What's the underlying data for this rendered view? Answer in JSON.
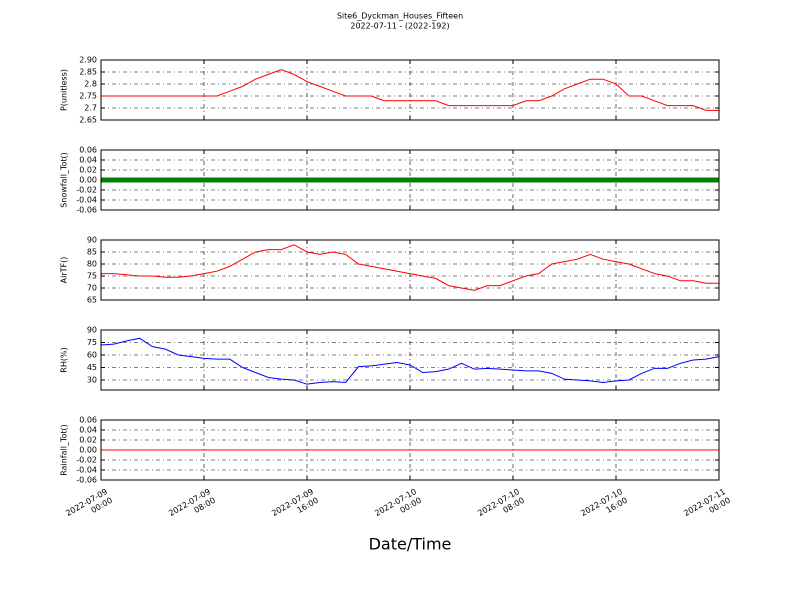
{
  "chart_data": [
    {
      "type": "line",
      "title": "Site6_Dyckman_Houses_Fifteen",
      "subtitle": "2022-07-11 - (2022-192)",
      "ylabel": "P(unitless)",
      "color": "#ff0000",
      "linewidth": 1,
      "grid": true,
      "x": [
        "2022-07-09 00:00",
        "2022-07-09 01:00",
        "2022-07-09 02:00",
        "2022-07-09 03:00",
        "2022-07-09 04:00",
        "2022-07-09 05:00",
        "2022-07-09 06:00",
        "2022-07-09 07:00",
        "2022-07-09 08:00",
        "2022-07-09 09:00",
        "2022-07-09 10:00",
        "2022-07-09 11:00",
        "2022-07-09 12:00",
        "2022-07-09 13:00",
        "2022-07-09 14:00",
        "2022-07-09 15:00",
        "2022-07-09 16:00",
        "2022-07-09 17:00",
        "2022-07-09 18:00",
        "2022-07-09 19:00",
        "2022-07-09 20:00",
        "2022-07-09 21:00",
        "2022-07-09 22:00",
        "2022-07-09 23:00",
        "2022-07-10 00:00",
        "2022-07-10 01:00",
        "2022-07-10 02:00",
        "2022-07-10 03:00",
        "2022-07-10 04:00",
        "2022-07-10 05:00",
        "2022-07-10 06:00",
        "2022-07-10 07:00",
        "2022-07-10 08:00",
        "2022-07-10 09:00",
        "2022-07-10 10:00",
        "2022-07-10 11:00",
        "2022-07-10 12:00",
        "2022-07-10 13:00",
        "2022-07-10 14:00",
        "2022-07-10 15:00",
        "2022-07-10 16:00",
        "2022-07-10 17:00",
        "2022-07-10 18:00",
        "2022-07-10 19:00",
        "2022-07-10 20:00",
        "2022-07-10 21:00",
        "2022-07-10 22:00",
        "2022-07-10 23:00",
        "2022-07-11 00:00"
      ],
      "values": [
        2.75,
        2.75,
        2.75,
        2.75,
        2.75,
        2.75,
        2.75,
        2.75,
        2.75,
        2.75,
        2.77,
        2.79,
        2.82,
        2.84,
        2.86,
        2.84,
        2.81,
        2.79,
        2.77,
        2.75,
        2.75,
        2.75,
        2.73,
        2.73,
        2.73,
        2.73,
        2.73,
        2.71,
        2.71,
        2.71,
        2.71,
        2.71,
        2.71,
        2.73,
        2.73,
        2.75,
        2.78,
        2.8,
        2.82,
        2.82,
        2.8,
        2.75,
        2.75,
        2.73,
        2.71,
        2.71,
        2.71,
        2.69,
        2.69
      ],
      "ylim": [
        2.65,
        2.9
      ],
      "yticks": [
        2.65,
        2.7,
        2.75,
        2.8,
        2.85,
        {
          "value": 2.9,
          "label": "2.90"
        }
      ]
    },
    {
      "type": "line",
      "ylabel": "Snowfall_Tot()",
      "color": "#008000",
      "linewidth": 5,
      "grid": true,
      "x": [
        "2022-07-09 00:00",
        "2022-07-09 01:00",
        "2022-07-09 02:00",
        "2022-07-09 03:00",
        "2022-07-09 04:00",
        "2022-07-09 05:00",
        "2022-07-09 06:00",
        "2022-07-09 07:00",
        "2022-07-09 08:00",
        "2022-07-09 09:00",
        "2022-07-09 10:00",
        "2022-07-09 11:00",
        "2022-07-09 12:00",
        "2022-07-09 13:00",
        "2022-07-09 14:00",
        "2022-07-09 15:00",
        "2022-07-09 16:00",
        "2022-07-09 17:00",
        "2022-07-09 18:00",
        "2022-07-09 19:00",
        "2022-07-09 20:00",
        "2022-07-09 21:00",
        "2022-07-09 22:00",
        "2022-07-09 23:00",
        "2022-07-10 00:00",
        "2022-07-10 01:00",
        "2022-07-10 02:00",
        "2022-07-10 03:00",
        "2022-07-10 04:00",
        "2022-07-10 05:00",
        "2022-07-10 06:00",
        "2022-07-10 07:00",
        "2022-07-10 08:00",
        "2022-07-10 09:00",
        "2022-07-10 10:00",
        "2022-07-10 11:00",
        "2022-07-10 12:00",
        "2022-07-10 13:00",
        "2022-07-10 14:00",
        "2022-07-10 15:00",
        "2022-07-10 16:00",
        "2022-07-10 17:00",
        "2022-07-10 18:00",
        "2022-07-10 19:00",
        "2022-07-10 20:00",
        "2022-07-10 21:00",
        "2022-07-10 22:00",
        "2022-07-10 23:00",
        "2022-07-11 00:00"
      ],
      "values": [
        0,
        0,
        0,
        0,
        0,
        0,
        0,
        0,
        0,
        0,
        0,
        0,
        0,
        0,
        0,
        0,
        0,
        0,
        0,
        0,
        0,
        0,
        0,
        0,
        0,
        0,
        0,
        0,
        0,
        0,
        0,
        0,
        0,
        0,
        0,
        0,
        0,
        0,
        0,
        0,
        0,
        0,
        0,
        0,
        0,
        0,
        0,
        0,
        0
      ],
      "ylim": [
        -0.06,
        0.06
      ],
      "yticks": [
        -0.06,
        -0.04,
        -0.02,
        {
          "value": 0,
          "label": "0.00"
        },
        0.02,
        0.04,
        0.06
      ]
    },
    {
      "type": "line",
      "ylabel": "AirTF()",
      "color": "#ff0000",
      "linewidth": 1,
      "grid": true,
      "x": [
        "2022-07-09 00:00",
        "2022-07-09 01:00",
        "2022-07-09 02:00",
        "2022-07-09 03:00",
        "2022-07-09 04:00",
        "2022-07-09 05:00",
        "2022-07-09 06:00",
        "2022-07-09 07:00",
        "2022-07-09 08:00",
        "2022-07-09 09:00",
        "2022-07-09 10:00",
        "2022-07-09 11:00",
        "2022-07-09 12:00",
        "2022-07-09 13:00",
        "2022-07-09 14:00",
        "2022-07-09 15:00",
        "2022-07-09 16:00",
        "2022-07-09 17:00",
        "2022-07-09 18:00",
        "2022-07-09 19:00",
        "2022-07-09 20:00",
        "2022-07-09 21:00",
        "2022-07-09 22:00",
        "2022-07-09 23:00",
        "2022-07-10 00:00",
        "2022-07-10 01:00",
        "2022-07-10 02:00",
        "2022-07-10 03:00",
        "2022-07-10 04:00",
        "2022-07-10 05:00",
        "2022-07-10 06:00",
        "2022-07-10 07:00",
        "2022-07-10 08:00",
        "2022-07-10 09:00",
        "2022-07-10 10:00",
        "2022-07-10 11:00",
        "2022-07-10 12:00",
        "2022-07-10 13:00",
        "2022-07-10 14:00",
        "2022-07-10 15:00",
        "2022-07-10 16:00",
        "2022-07-10 17:00",
        "2022-07-10 18:00",
        "2022-07-10 19:00",
        "2022-07-10 20:00",
        "2022-07-10 21:00",
        "2022-07-10 22:00",
        "2022-07-10 23:00",
        "2022-07-11 00:00"
      ],
      "values": [
        76,
        76,
        75.5,
        75,
        75,
        74.5,
        74.5,
        75,
        76,
        77,
        79,
        82,
        85,
        86,
        86,
        88,
        85,
        84,
        85,
        84,
        80,
        79,
        78,
        77,
        76,
        75,
        74,
        71,
        70,
        69,
        71,
        71,
        73,
        75,
        76,
        80,
        81,
        82,
        84,
        82,
        81,
        80,
        78,
        76,
        75,
        73,
        73,
        72,
        72
      ],
      "ylim": [
        65,
        90
      ],
      "yticks": [
        65,
        70,
        75,
        80,
        85,
        90
      ]
    },
    {
      "type": "line",
      "ylabel": "RH(%)",
      "color": "#0000ff",
      "linewidth": 1,
      "grid": true,
      "x": [
        "2022-07-09 00:00",
        "2022-07-09 01:00",
        "2022-07-09 02:00",
        "2022-07-09 03:00",
        "2022-07-09 04:00",
        "2022-07-09 05:00",
        "2022-07-09 06:00",
        "2022-07-09 07:00",
        "2022-07-09 08:00",
        "2022-07-09 09:00",
        "2022-07-09 10:00",
        "2022-07-09 11:00",
        "2022-07-09 12:00",
        "2022-07-09 13:00",
        "2022-07-09 14:00",
        "2022-07-09 15:00",
        "2022-07-09 16:00",
        "2022-07-09 17:00",
        "2022-07-09 18:00",
        "2022-07-09 19:00",
        "2022-07-09 20:00",
        "2022-07-09 21:00",
        "2022-07-09 22:00",
        "2022-07-09 23:00",
        "2022-07-10 00:00",
        "2022-07-10 01:00",
        "2022-07-10 02:00",
        "2022-07-10 03:00",
        "2022-07-10 04:00",
        "2022-07-10 05:00",
        "2022-07-10 06:00",
        "2022-07-10 07:00",
        "2022-07-10 08:00",
        "2022-07-10 09:00",
        "2022-07-10 10:00",
        "2022-07-10 11:00",
        "2022-07-10 12:00",
        "2022-07-10 13:00",
        "2022-07-10 14:00",
        "2022-07-10 15:00",
        "2022-07-10 16:00",
        "2022-07-10 17:00",
        "2022-07-10 18:00",
        "2022-07-10 19:00",
        "2022-07-10 20:00",
        "2022-07-10 21:00",
        "2022-07-10 22:00",
        "2022-07-10 23:00",
        "2022-07-11 00:00"
      ],
      "values": [
        72,
        73,
        77,
        80,
        70,
        67,
        60,
        58,
        56,
        55,
        55,
        45,
        39,
        33,
        31,
        30,
        25,
        27,
        28,
        27,
        46,
        47,
        49,
        51,
        48,
        39,
        40,
        43,
        50,
        43,
        44,
        43,
        42,
        41,
        41,
        38,
        31,
        30,
        29,
        27,
        29,
        30,
        38,
        44,
        44,
        50,
        54,
        55,
        58
      ],
      "ylim": [
        18,
        90
      ],
      "yticks": [
        30,
        45,
        60,
        75,
        90
      ]
    },
    {
      "type": "line",
      "ylabel": "Rainfall_Tot()",
      "xlabel": "Date/Time",
      "color": "#ff0000",
      "linewidth": 1,
      "grid": true,
      "x": [
        "2022-07-09 00:00",
        "2022-07-09 01:00",
        "2022-07-09 02:00",
        "2022-07-09 03:00",
        "2022-07-09 04:00",
        "2022-07-09 05:00",
        "2022-07-09 06:00",
        "2022-07-09 07:00",
        "2022-07-09 08:00",
        "2022-07-09 09:00",
        "2022-07-09 10:00",
        "2022-07-09 11:00",
        "2022-07-09 12:00",
        "2022-07-09 13:00",
        "2022-07-09 14:00",
        "2022-07-09 15:00",
        "2022-07-09 16:00",
        "2022-07-09 17:00",
        "2022-07-09 18:00",
        "2022-07-09 19:00",
        "2022-07-09 20:00",
        "2022-07-09 21:00",
        "2022-07-09 22:00",
        "2022-07-09 23:00",
        "2022-07-10 00:00",
        "2022-07-10 01:00",
        "2022-07-10 02:00",
        "2022-07-10 03:00",
        "2022-07-10 04:00",
        "2022-07-10 05:00",
        "2022-07-10 06:00",
        "2022-07-10 07:00",
        "2022-07-10 08:00",
        "2022-07-10 09:00",
        "2022-07-10 10:00",
        "2022-07-10 11:00",
        "2022-07-10 12:00",
        "2022-07-10 13:00",
        "2022-07-10 14:00",
        "2022-07-10 15:00",
        "2022-07-10 16:00",
        "2022-07-10 17:00",
        "2022-07-10 18:00",
        "2022-07-10 19:00",
        "2022-07-10 20:00",
        "2022-07-10 21:00",
        "2022-07-10 22:00",
        "2022-07-10 23:00",
        "2022-07-11 00:00"
      ],
      "values": [
        0,
        0,
        0,
        0,
        0,
        0,
        0,
        0,
        0,
        0,
        0,
        0,
        0,
        0,
        0,
        0,
        0,
        0,
        0,
        0,
        0,
        0,
        0,
        0,
        0,
        0,
        0,
        0,
        0,
        0,
        0,
        0,
        0,
        0,
        0,
        0,
        0,
        0,
        0,
        0,
        0,
        0,
        0,
        0,
        0,
        0,
        0,
        0,
        0
      ],
      "ylim": [
        -0.06,
        0.06
      ],
      "yticks": [
        -0.06,
        -0.04,
        -0.02,
        {
          "value": 0,
          "label": "0.00"
        },
        0.02,
        0.04,
        0.06
      ],
      "xlim": [
        "2022-07-09 00:00",
        "2022-07-11 00:00"
      ],
      "xticks": [
        {
          "value": "2022-07-09 00:00",
          "label": "2022-07-09\n00:00"
        },
        {
          "value": "2022-07-09 08:00",
          "label": "2022-07-09\n08:00"
        },
        {
          "value": "2022-07-09 16:00",
          "label": "2022-07-09\n16:00"
        },
        {
          "value": "2022-07-10 00:00",
          "label": "2022-07-10\n00:00"
        },
        {
          "value": "2022-07-10 08:00",
          "label": "2022-07-10\n08:00"
        },
        {
          "value": "2022-07-10 16:00",
          "label": "2022-07-10\n16:00"
        },
        {
          "value": "2022-07-11 00:00",
          "label": "2022-07-11\n00:00"
        }
      ]
    }
  ]
}
